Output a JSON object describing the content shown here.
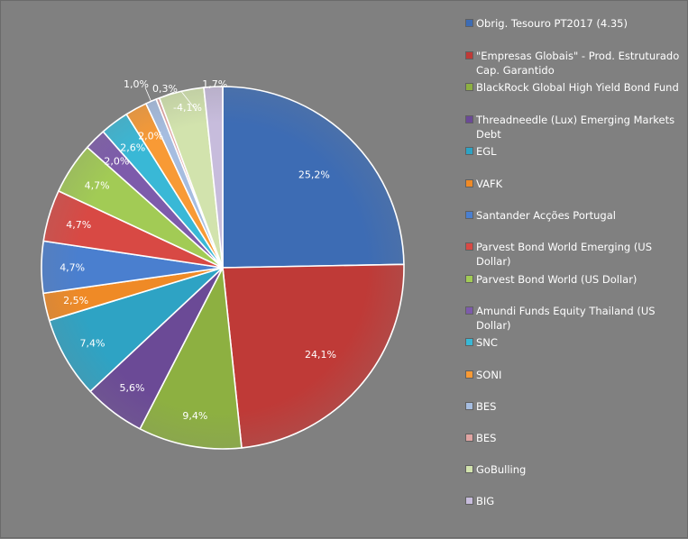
{
  "chart_data": {
    "type": "pie",
    "categories": [
      "Obrig. Tesouro PT2017  (4.35)",
      "\"Empresas Globais\" - Prod. Estruturado Cap. Garantido",
      "BlackRock Global High Yield Bond Fund",
      "Threadneedle (Lux) Emerging Markets Debt",
      "EGL",
      "VAFK",
      "Santander Acções Portugal",
      "Parvest Bond World Emerging (US Dollar)",
      "Parvest Bond World (US Dollar)",
      "Amundi Funds Equity Thailand (US Dollar)",
      "SNC",
      "SONI",
      "BES",
      "BES",
      "GoBulling",
      "BIG"
    ],
    "values": [
      25.2,
      24.1,
      9.4,
      5.6,
      7.4,
      2.5,
      4.7,
      4.7,
      4.7,
      2.0,
      2.6,
      2.0,
      1.0,
      0.3,
      -4.1,
      1.7
    ],
    "data_labels": [
      "25,2%",
      "24,1%",
      "9,4%",
      "5,6%",
      "7,4%",
      "2,5%",
      "4,7%",
      "4,7%",
      "4,7%",
      "2,0%",
      "2,6%",
      "2,0%",
      "1,0%",
      "0,3%",
      "-4,1%",
      "1,7%"
    ],
    "colors": [
      "#3d6cb4",
      "#bf3a37",
      "#8db041",
      "#6b4a96",
      "#2ea3c4",
      "#ef8a26",
      "#4a7fcf",
      "#d84944",
      "#a2cb55",
      "#7d5bab",
      "#39b8d6",
      "#f89a35",
      "#a6bde0",
      "#e0a4a2",
      "#d2e3ad",
      "#c7bcdc"
    ],
    "legend_position": "right"
  }
}
